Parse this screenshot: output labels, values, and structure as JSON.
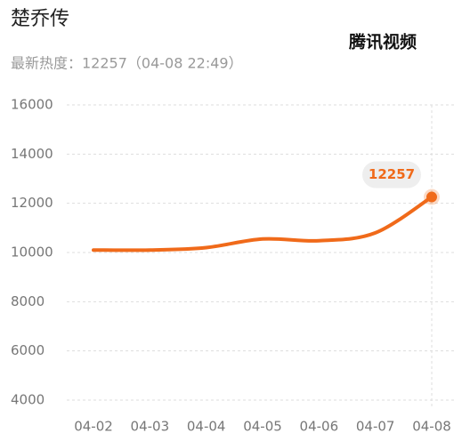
{
  "chart_data": {
    "type": "line",
    "title": "楚乔传",
    "subtitle": "最新热度：12257（04-08 22:49）",
    "watermark": "腾讯视频",
    "categories": [
      "04-02",
      "04-03",
      "04-04",
      "04-05",
      "04-06",
      "04-07",
      "04-08"
    ],
    "series": [
      {
        "name": "楚乔传",
        "color": "#f06a1a",
        "values": [
          10100,
          10100,
          10200,
          10550,
          10480,
          10800,
          12257
        ]
      }
    ],
    "ylim": [
      4000,
      16000
    ],
    "yticks": [
      4000,
      6000,
      8000,
      10000,
      12000,
      14000,
      16000
    ],
    "grid": true
  }
}
